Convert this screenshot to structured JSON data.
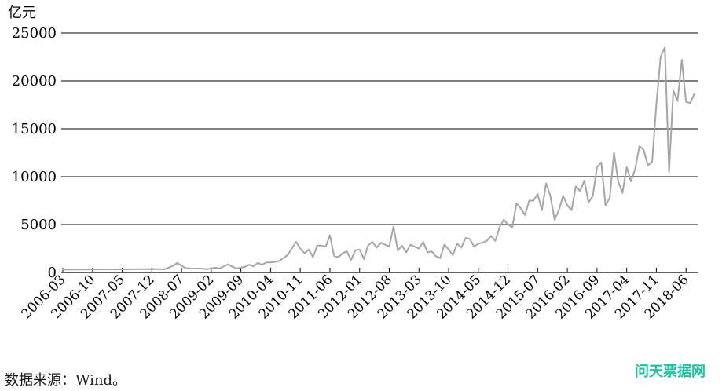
{
  "chart_data": {
    "type": "line",
    "unit_label": "亿元",
    "ylim": [
      0,
      25000
    ],
    "yticks": [
      0,
      5000,
      10000,
      15000,
      20000,
      25000
    ],
    "grid": "horizontal",
    "x_ticks": [
      "2006-03",
      "2006-10",
      "2007-05",
      "2007-12",
      "2008-07",
      "2009-02",
      "2009-09",
      "2010-04",
      "2010-11",
      "2011-06",
      "2012-01",
      "2012-08",
      "2013-03",
      "2013-10",
      "2014-05",
      "2014-12",
      "2015-07",
      "2016-02",
      "2016-09",
      "2017-04",
      "2017-11",
      "2018-06"
    ],
    "line_color": "#a6a6a6",
    "series": [
      {
        "x": [
          "2006-03",
          "2006-10",
          "2007-05",
          "2007-12",
          "2008-03",
          "2008-05",
          "2008-06",
          "2008-07",
          "2008-08",
          "2008-09",
          "2008-10",
          "2008-11",
          "2008-12",
          "2009-01",
          "2009-02",
          "2009-03",
          "2009-04",
          "2009-05",
          "2009-06",
          "2009-07",
          "2009-08",
          "2009-09",
          "2009-10",
          "2009-11",
          "2009-12",
          "2010-01",
          "2010-02",
          "2010-03",
          "2010-04",
          "2010-05",
          "2010-06",
          "2010-07",
          "2010-08",
          "2010-09",
          "2010-10",
          "2010-11",
          "2010-12",
          "2011-01",
          "2011-02",
          "2011-03",
          "2011-04",
          "2011-05",
          "2011-06",
          "2011-07",
          "2011-08",
          "2011-09",
          "2011-10",
          "2011-11",
          "2011-12",
          "2012-01",
          "2012-02",
          "2012-03",
          "2012-04",
          "2012-05",
          "2012-06",
          "2012-07",
          "2012-08",
          "2012-09",
          "2012-10",
          "2012-11",
          "2012-12",
          "2013-01",
          "2013-02",
          "2013-03",
          "2013-04",
          "2013-05",
          "2013-06",
          "2013-07",
          "2013-08",
          "2013-09",
          "2013-10",
          "2013-11",
          "2013-12",
          "2014-01",
          "2014-02",
          "2014-03",
          "2014-04",
          "2014-05",
          "2014-06",
          "2014-07",
          "2014-08",
          "2014-09",
          "2014-10",
          "2014-11",
          "2014-12",
          "2015-01",
          "2015-02",
          "2015-03",
          "2015-04",
          "2015-05",
          "2015-06",
          "2015-07",
          "2015-08",
          "2015-09",
          "2015-10",
          "2015-11",
          "2015-12",
          "2016-01",
          "2016-02",
          "2016-03",
          "2016-04",
          "2016-05",
          "2016-06",
          "2016-07",
          "2016-08",
          "2016-09",
          "2016-10",
          "2016-11",
          "2016-12",
          "2017-01",
          "2017-02",
          "2017-03",
          "2017-04",
          "2017-05",
          "2017-06",
          "2017-07",
          "2017-08",
          "2017-09",
          "2017-10",
          "2017-11",
          "2017-12",
          "2018-01",
          "2018-02",
          "2018-03",
          "2018-04",
          "2018-05",
          "2018-06",
          "2018-07",
          "2018-08"
        ],
        "values": [
          300,
          320,
          330,
          360,
          340,
          700,
          1000,
          700,
          450,
          420,
          400,
          420,
          380,
          350,
          420,
          500,
          420,
          650,
          850,
          600,
          420,
          500,
          600,
          800,
          650,
          1000,
          800,
          1050,
          1050,
          1100,
          1200,
          1500,
          1800,
          2500,
          3200,
          2500,
          2000,
          2400,
          1600,
          2800,
          2800,
          2700,
          3900,
          1700,
          1600,
          2000,
          2200,
          1300,
          2300,
          2400,
          1400,
          2800,
          3200,
          2600,
          3100,
          2900,
          2700,
          4800,
          2300,
          2800,
          2100,
          2900,
          2700,
          2500,
          3200,
          2100,
          2200,
          1700,
          1500,
          2900,
          2400,
          1800,
          3000,
          2600,
          3600,
          3500,
          2700,
          3000,
          3100,
          3300,
          3800,
          3300,
          4700,
          5500,
          5000,
          4700,
          7200,
          6700,
          6000,
          7500,
          7500,
          8200,
          6500,
          9300,
          8000,
          5500,
          6500,
          8000,
          7000,
          6500,
          9000,
          8500,
          9600,
          7300,
          8000,
          11000,
          11500,
          7000,
          7800,
          12500,
          9500,
          8300,
          11000,
          9500,
          10800,
          13200,
          12800,
          11200,
          11500,
          17500,
          22500,
          23500,
          10500,
          19000,
          17900,
          22200,
          17800,
          17700,
          18700
        ]
      }
    ]
  },
  "source_note": "数据来源：Wind。",
  "watermark": "问天票据网"
}
